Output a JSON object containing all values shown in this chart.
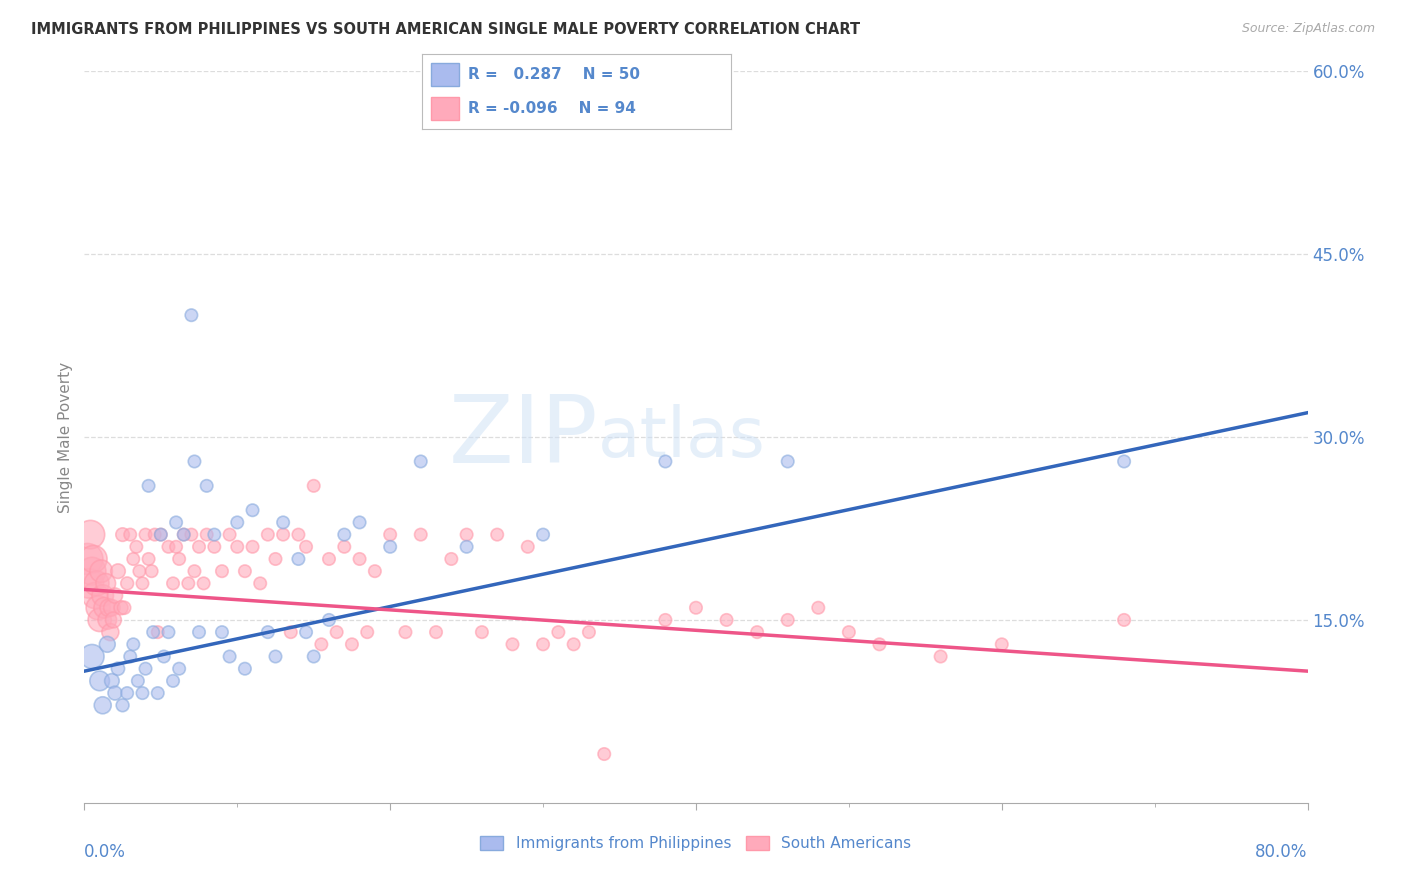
{
  "title": "IMMIGRANTS FROM PHILIPPINES VS SOUTH AMERICAN SINGLE MALE POVERTY CORRELATION CHART",
  "source": "Source: ZipAtlas.com",
  "ylabel": "Single Male Poverty",
  "xlim": [
    0.0,
    0.8
  ],
  "ylim": [
    0.0,
    0.6
  ],
  "legend1_R": "0.287",
  "legend1_N": "50",
  "legend2_R": "-0.096",
  "legend2_N": "94",
  "legend1_label": "Immigrants from Philippines",
  "legend2_label": "South Americans",
  "blue_color": "#88aadd",
  "pink_color": "#ff99aa",
  "blue_fill": "#aabbee",
  "pink_fill": "#ffaabb",
  "blue_line_color": "#3366bb",
  "pink_line_color": "#ee5588",
  "watermark_zip": "ZIP",
  "watermark_atlas": "atlas",
  "title_color": "#333333",
  "axis_label_color": "#5588cc",
  "grid_color": "#dddddd",
  "blue_scatter_x": [
    0.005,
    0.01,
    0.012,
    0.015,
    0.018,
    0.02,
    0.022,
    0.025,
    0.028,
    0.03,
    0.032,
    0.035,
    0.038,
    0.04,
    0.042,
    0.045,
    0.048,
    0.05,
    0.052,
    0.055,
    0.058,
    0.06,
    0.062,
    0.065,
    0.07,
    0.072,
    0.075,
    0.08,
    0.085,
    0.09,
    0.095,
    0.1,
    0.105,
    0.11,
    0.12,
    0.125,
    0.13,
    0.14,
    0.145,
    0.15,
    0.16,
    0.17,
    0.18,
    0.2,
    0.22,
    0.25,
    0.3,
    0.38,
    0.46,
    0.68
  ],
  "blue_scatter_y": [
    0.12,
    0.1,
    0.08,
    0.13,
    0.1,
    0.09,
    0.11,
    0.08,
    0.09,
    0.12,
    0.13,
    0.1,
    0.09,
    0.11,
    0.26,
    0.14,
    0.09,
    0.22,
    0.12,
    0.14,
    0.1,
    0.23,
    0.11,
    0.22,
    0.4,
    0.28,
    0.14,
    0.26,
    0.22,
    0.14,
    0.12,
    0.23,
    0.11,
    0.24,
    0.14,
    0.12,
    0.23,
    0.2,
    0.14,
    0.12,
    0.15,
    0.22,
    0.23,
    0.21,
    0.28,
    0.21,
    0.22,
    0.28,
    0.28,
    0.28
  ],
  "blue_scatter_sizes": [
    300,
    200,
    150,
    130,
    110,
    100,
    90,
    85,
    80,
    80,
    80,
    80,
    80,
    80,
    80,
    80,
    80,
    80,
    80,
    80,
    80,
    80,
    80,
    80,
    80,
    80,
    80,
    80,
    80,
    80,
    80,
    80,
    80,
    80,
    80,
    80,
    80,
    80,
    80,
    80,
    80,
    80,
    80,
    80,
    80,
    80,
    80,
    80,
    80,
    80
  ],
  "pink_scatter_x": [
    0.002,
    0.003,
    0.004,
    0.005,
    0.006,
    0.007,
    0.008,
    0.009,
    0.01,
    0.011,
    0.012,
    0.013,
    0.014,
    0.015,
    0.016,
    0.017,
    0.018,
    0.019,
    0.02,
    0.022,
    0.024,
    0.025,
    0.026,
    0.028,
    0.03,
    0.032,
    0.034,
    0.036,
    0.038,
    0.04,
    0.042,
    0.044,
    0.046,
    0.048,
    0.05,
    0.055,
    0.058,
    0.06,
    0.062,
    0.065,
    0.068,
    0.07,
    0.072,
    0.075,
    0.078,
    0.08,
    0.085,
    0.09,
    0.095,
    0.1,
    0.105,
    0.11,
    0.115,
    0.12,
    0.125,
    0.13,
    0.135,
    0.14,
    0.145,
    0.15,
    0.155,
    0.16,
    0.165,
    0.17,
    0.175,
    0.18,
    0.185,
    0.19,
    0.2,
    0.21,
    0.22,
    0.23,
    0.24,
    0.25,
    0.26,
    0.27,
    0.28,
    0.29,
    0.3,
    0.31,
    0.32,
    0.33,
    0.34,
    0.38,
    0.4,
    0.42,
    0.44,
    0.46,
    0.48,
    0.5,
    0.52,
    0.56,
    0.6,
    0.68
  ],
  "pink_scatter_y": [
    0.2,
    0.18,
    0.22,
    0.19,
    0.2,
    0.17,
    0.18,
    0.16,
    0.15,
    0.19,
    0.17,
    0.16,
    0.18,
    0.15,
    0.16,
    0.14,
    0.16,
    0.15,
    0.17,
    0.19,
    0.16,
    0.22,
    0.16,
    0.18,
    0.22,
    0.2,
    0.21,
    0.19,
    0.18,
    0.22,
    0.2,
    0.19,
    0.22,
    0.14,
    0.22,
    0.21,
    0.18,
    0.21,
    0.2,
    0.22,
    0.18,
    0.22,
    0.19,
    0.21,
    0.18,
    0.22,
    0.21,
    0.19,
    0.22,
    0.21,
    0.19,
    0.21,
    0.18,
    0.22,
    0.2,
    0.22,
    0.14,
    0.22,
    0.21,
    0.26,
    0.13,
    0.2,
    0.14,
    0.21,
    0.13,
    0.2,
    0.14,
    0.19,
    0.22,
    0.14,
    0.22,
    0.14,
    0.2,
    0.22,
    0.14,
    0.22,
    0.13,
    0.21,
    0.13,
    0.14,
    0.13,
    0.14,
    0.04,
    0.15,
    0.16,
    0.15,
    0.14,
    0.15,
    0.16,
    0.14,
    0.13,
    0.12,
    0.13,
    0.15
  ],
  "pink_scatter_sizes": [
    500,
    450,
    420,
    400,
    380,
    350,
    320,
    300,
    280,
    260,
    240,
    220,
    200,
    180,
    160,
    150,
    140,
    130,
    120,
    110,
    100,
    95,
    90,
    85,
    80,
    80,
    80,
    80,
    80,
    80,
    80,
    80,
    80,
    80,
    80,
    80,
    80,
    80,
    80,
    80,
    80,
    80,
    80,
    80,
    80,
    80,
    80,
    80,
    80,
    80,
    80,
    80,
    80,
    80,
    80,
    80,
    80,
    80,
    80,
    80,
    80,
    80,
    80,
    80,
    80,
    80,
    80,
    80,
    80,
    80,
    80,
    80,
    80,
    80,
    80,
    80,
    80,
    80,
    80,
    80,
    80,
    80,
    80,
    80,
    80,
    80,
    80,
    80,
    80,
    80,
    80,
    80,
    80,
    80
  ],
  "blue_line_x0": 0.0,
  "blue_line_y0": 0.108,
  "blue_line_x1": 0.8,
  "blue_line_y1": 0.32,
  "pink_line_x0": 0.0,
  "pink_line_y0": 0.175,
  "pink_line_x1": 0.8,
  "pink_line_y1": 0.108
}
